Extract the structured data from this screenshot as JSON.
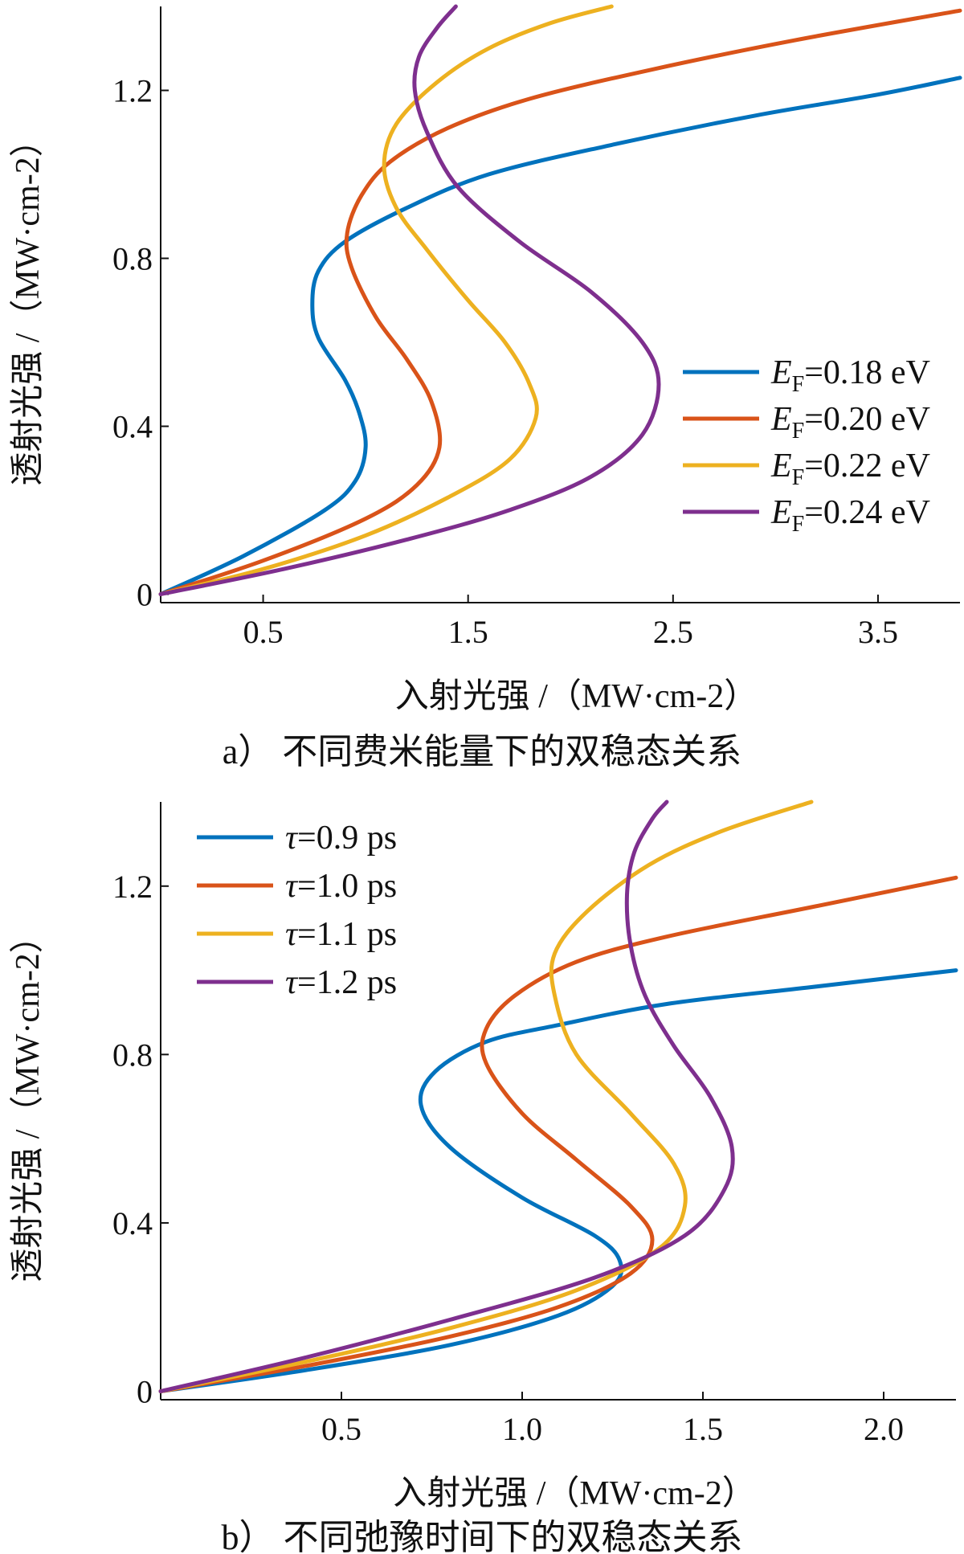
{
  "chart_data": [
    {
      "type": "line",
      "panel_label": "a）",
      "caption": "不同费米能量下的双稳态关系",
      "xlabel": "入射光强 /（MW·cm-2）",
      "ylabel": "透射光强 /（MW·cm-2）",
      "xlim": [
        0,
        3.9
      ],
      "ylim": [
        -0.02,
        1.4
      ],
      "xticks": [
        0.5,
        1.5,
        2.5,
        3.5
      ],
      "xtick_labels": [
        "0.5",
        "1.5",
        "2.5",
        "3.5"
      ],
      "yticks": [
        0,
        0.4,
        0.8,
        1.2
      ],
      "ytick_labels": [
        "0",
        "0.4",
        "0.8",
        "1.2"
      ],
      "legend_position": "right",
      "grid": false,
      "series": [
        {
          "name": "EF=0.18 eV",
          "label_main": "E",
          "label_sub": "F",
          "label_tail": "=0.18 eV",
          "color": "#0072BD",
          "points": [
            [
              0,
              0
            ],
            [
              0.4,
              0.09
            ],
            [
              0.8,
              0.2
            ],
            [
              0.95,
              0.27
            ],
            [
              1.0,
              0.35
            ],
            [
              0.97,
              0.43
            ],
            [
              0.9,
              0.51
            ],
            [
              0.77,
              0.61
            ],
            [
              0.74,
              0.69
            ],
            [
              0.77,
              0.77
            ],
            [
              0.9,
              0.84
            ],
            [
              1.2,
              0.92
            ],
            [
              1.6,
              1.0
            ],
            [
              2.2,
              1.07
            ],
            [
              2.9,
              1.14
            ],
            [
              3.5,
              1.19
            ],
            [
              3.9,
              1.23
            ]
          ]
        },
        {
          "name": "EF=0.20 eV",
          "label_main": "E",
          "label_sub": "F",
          "label_tail": "=0.20 eV",
          "color": "#D95319",
          "points": [
            [
              0,
              0
            ],
            [
              0.5,
              0.08
            ],
            [
              1.0,
              0.18
            ],
            [
              1.25,
              0.26
            ],
            [
              1.36,
              0.35
            ],
            [
              1.32,
              0.46
            ],
            [
              1.2,
              0.56
            ],
            [
              1.05,
              0.66
            ],
            [
              0.93,
              0.78
            ],
            [
              0.91,
              0.86
            ],
            [
              0.98,
              0.95
            ],
            [
              1.12,
              1.03
            ],
            [
              1.4,
              1.11
            ],
            [
              1.8,
              1.18
            ],
            [
              2.4,
              1.25
            ],
            [
              3.1,
              1.32
            ],
            [
              3.9,
              1.39
            ]
          ]
        },
        {
          "name": "EF=0.22 eV",
          "label_main": "E",
          "label_sub": "F",
          "label_tail": "=0.22 eV",
          "color": "#EDB120",
          "points": [
            [
              0,
              0
            ],
            [
              0.5,
              0.06
            ],
            [
              1.0,
              0.14
            ],
            [
              1.4,
              0.23
            ],
            [
              1.7,
              0.32
            ],
            [
              1.83,
              0.42
            ],
            [
              1.8,
              0.5
            ],
            [
              1.68,
              0.6
            ],
            [
              1.5,
              0.7
            ],
            [
              1.3,
              0.82
            ],
            [
              1.15,
              0.92
            ],
            [
              1.09,
              1.02
            ],
            [
              1.15,
              1.12
            ],
            [
              1.35,
              1.22
            ],
            [
              1.6,
              1.3
            ],
            [
              1.9,
              1.36
            ],
            [
              2.2,
              1.4
            ]
          ]
        },
        {
          "name": "EF=0.24 eV",
          "label_main": "E",
          "label_sub": "F",
          "label_tail": "=0.24 eV",
          "color": "#7E2F8E",
          "points": [
            [
              0,
              0
            ],
            [
              0.6,
              0.06
            ],
            [
              1.2,
              0.13
            ],
            [
              1.7,
              0.2
            ],
            [
              2.1,
              0.28
            ],
            [
              2.35,
              0.38
            ],
            [
              2.43,
              0.5
            ],
            [
              2.35,
              0.6
            ],
            [
              2.1,
              0.72
            ],
            [
              1.75,
              0.84
            ],
            [
              1.45,
              0.97
            ],
            [
              1.3,
              1.1
            ],
            [
              1.24,
              1.2
            ],
            [
              1.26,
              1.28
            ],
            [
              1.35,
              1.35
            ],
            [
              1.44,
              1.4
            ]
          ]
        }
      ]
    },
    {
      "type": "line",
      "panel_label": "b）",
      "caption": "不同弛豫时间下的双稳态关系",
      "xlabel": "入射光强 /（MW·cm-2）",
      "ylabel": "透射光强 /（MW·cm-2）",
      "xlim": [
        0,
        2.2
      ],
      "ylim": [
        -0.02,
        1.4
      ],
      "xticks": [
        0.5,
        1.0,
        1.5,
        2.0
      ],
      "xtick_labels": [
        "0.5",
        "1.0",
        "1.5",
        "2.0"
      ],
      "yticks": [
        0,
        0.4,
        0.8,
        1.2
      ],
      "ytick_labels": [
        "0",
        "0.4",
        "0.8",
        "1.2"
      ],
      "legend_position": "top-left",
      "grid": false,
      "series": [
        {
          "name": "τ=0.9 ps",
          "label_main": "τ",
          "label_tail": "=0.9 ps",
          "color": "#0072BD",
          "points": [
            [
              0,
              0
            ],
            [
              0.4,
              0.05
            ],
            [
              0.8,
              0.11
            ],
            [
              1.1,
              0.18
            ],
            [
              1.25,
              0.25
            ],
            [
              1.27,
              0.31
            ],
            [
              1.2,
              0.37
            ],
            [
              1.0,
              0.46
            ],
            [
              0.8,
              0.58
            ],
            [
              0.72,
              0.68
            ],
            [
              0.76,
              0.76
            ],
            [
              0.9,
              0.83
            ],
            [
              1.1,
              0.87
            ],
            [
              1.4,
              0.92
            ],
            [
              1.8,
              0.96
            ],
            [
              2.2,
              1.0
            ]
          ]
        },
        {
          "name": "τ=1.0 ps",
          "label_main": "τ",
          "label_tail": "=1.0 ps",
          "color": "#D95319",
          "points": [
            [
              0,
              0
            ],
            [
              0.4,
              0.06
            ],
            [
              0.8,
              0.13
            ],
            [
              1.1,
              0.2
            ],
            [
              1.3,
              0.28
            ],
            [
              1.36,
              0.36
            ],
            [
              1.3,
              0.44
            ],
            [
              1.15,
              0.55
            ],
            [
              1.0,
              0.66
            ],
            [
              0.9,
              0.78
            ],
            [
              0.9,
              0.86
            ],
            [
              0.98,
              0.94
            ],
            [
              1.15,
              1.02
            ],
            [
              1.4,
              1.08
            ],
            [
              1.8,
              1.15
            ],
            [
              2.2,
              1.22
            ]
          ]
        },
        {
          "name": "τ=1.1 ps",
          "label_main": "τ",
          "label_tail": "=1.1 ps",
          "color": "#EDB120",
          "points": [
            [
              0,
              0
            ],
            [
              0.4,
              0.07
            ],
            [
              0.8,
              0.15
            ],
            [
              1.15,
              0.24
            ],
            [
              1.38,
              0.34
            ],
            [
              1.45,
              0.44
            ],
            [
              1.42,
              0.54
            ],
            [
              1.3,
              0.66
            ],
            [
              1.15,
              0.8
            ],
            [
              1.09,
              0.94
            ],
            [
              1.09,
              1.04
            ],
            [
              1.18,
              1.14
            ],
            [
              1.35,
              1.25
            ],
            [
              1.55,
              1.33
            ],
            [
              1.8,
              1.4
            ]
          ]
        },
        {
          "name": "τ=1.2 ps",
          "label_main": "τ",
          "label_tail": "=1.2 ps",
          "color": "#7E2F8E",
          "points": [
            [
              0,
              0
            ],
            [
              0.4,
              0.08
            ],
            [
              0.8,
              0.17
            ],
            [
              1.2,
              0.27
            ],
            [
              1.45,
              0.37
            ],
            [
              1.56,
              0.48
            ],
            [
              1.58,
              0.58
            ],
            [
              1.52,
              0.7
            ],
            [
              1.42,
              0.82
            ],
            [
              1.34,
              0.94
            ],
            [
              1.3,
              1.06
            ],
            [
              1.29,
              1.18
            ],
            [
              1.31,
              1.28
            ],
            [
              1.36,
              1.36
            ],
            [
              1.4,
              1.4
            ]
          ]
        }
      ]
    }
  ]
}
